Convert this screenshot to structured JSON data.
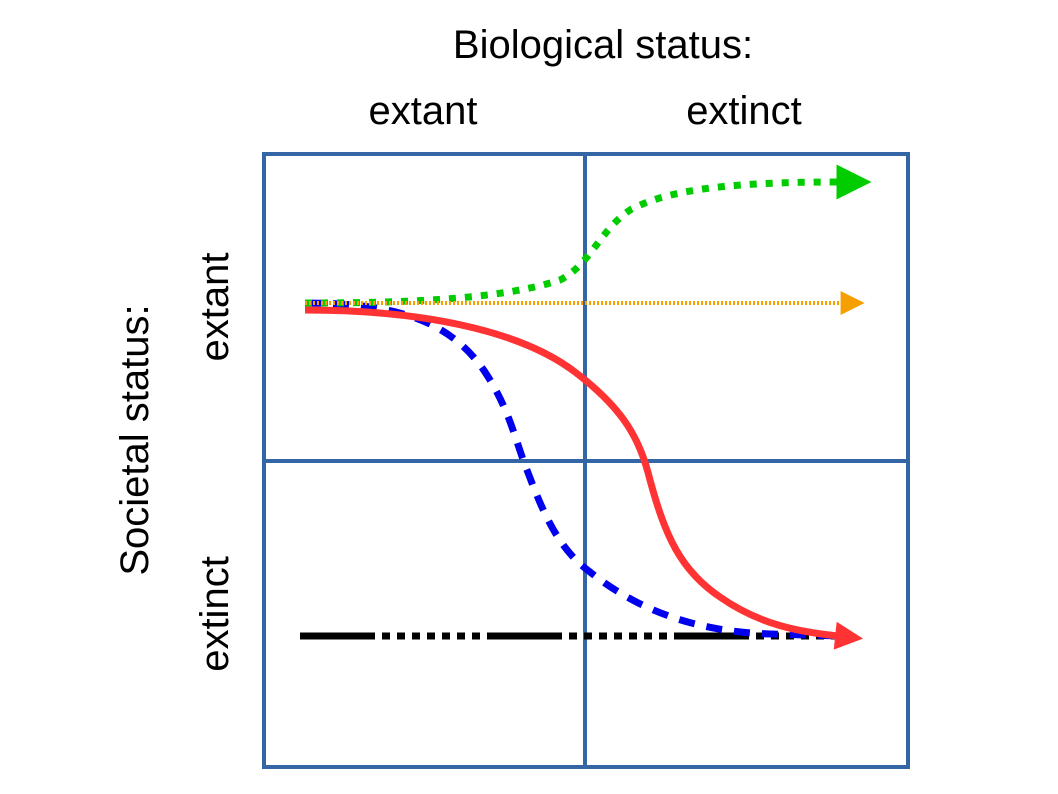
{
  "diagram": {
    "top_title": "Biological status:",
    "left_title": "Societal status:",
    "columns": [
      "extant",
      "extinct"
    ],
    "rows": [
      "extant",
      "extinct"
    ]
  },
  "colors": {
    "grid": "#3465a4",
    "green_path": "#00cc00",
    "orange_path": "#f5a000",
    "blue_path": "#0000ee",
    "red_path": "#ff3333",
    "black_path": "#000000"
  },
  "trajectories": [
    {
      "name": "green-dotted-curve",
      "color": "green",
      "style": "dotted"
    },
    {
      "name": "orange-straight-line",
      "color": "orange",
      "style": "dotted"
    },
    {
      "name": "blue-dashed-curve",
      "color": "blue",
      "style": "dashed"
    },
    {
      "name": "red-solid-curve",
      "color": "red",
      "style": "solid"
    },
    {
      "name": "black-dash-dot-line",
      "color": "black",
      "style": "dash-dot"
    }
  ]
}
